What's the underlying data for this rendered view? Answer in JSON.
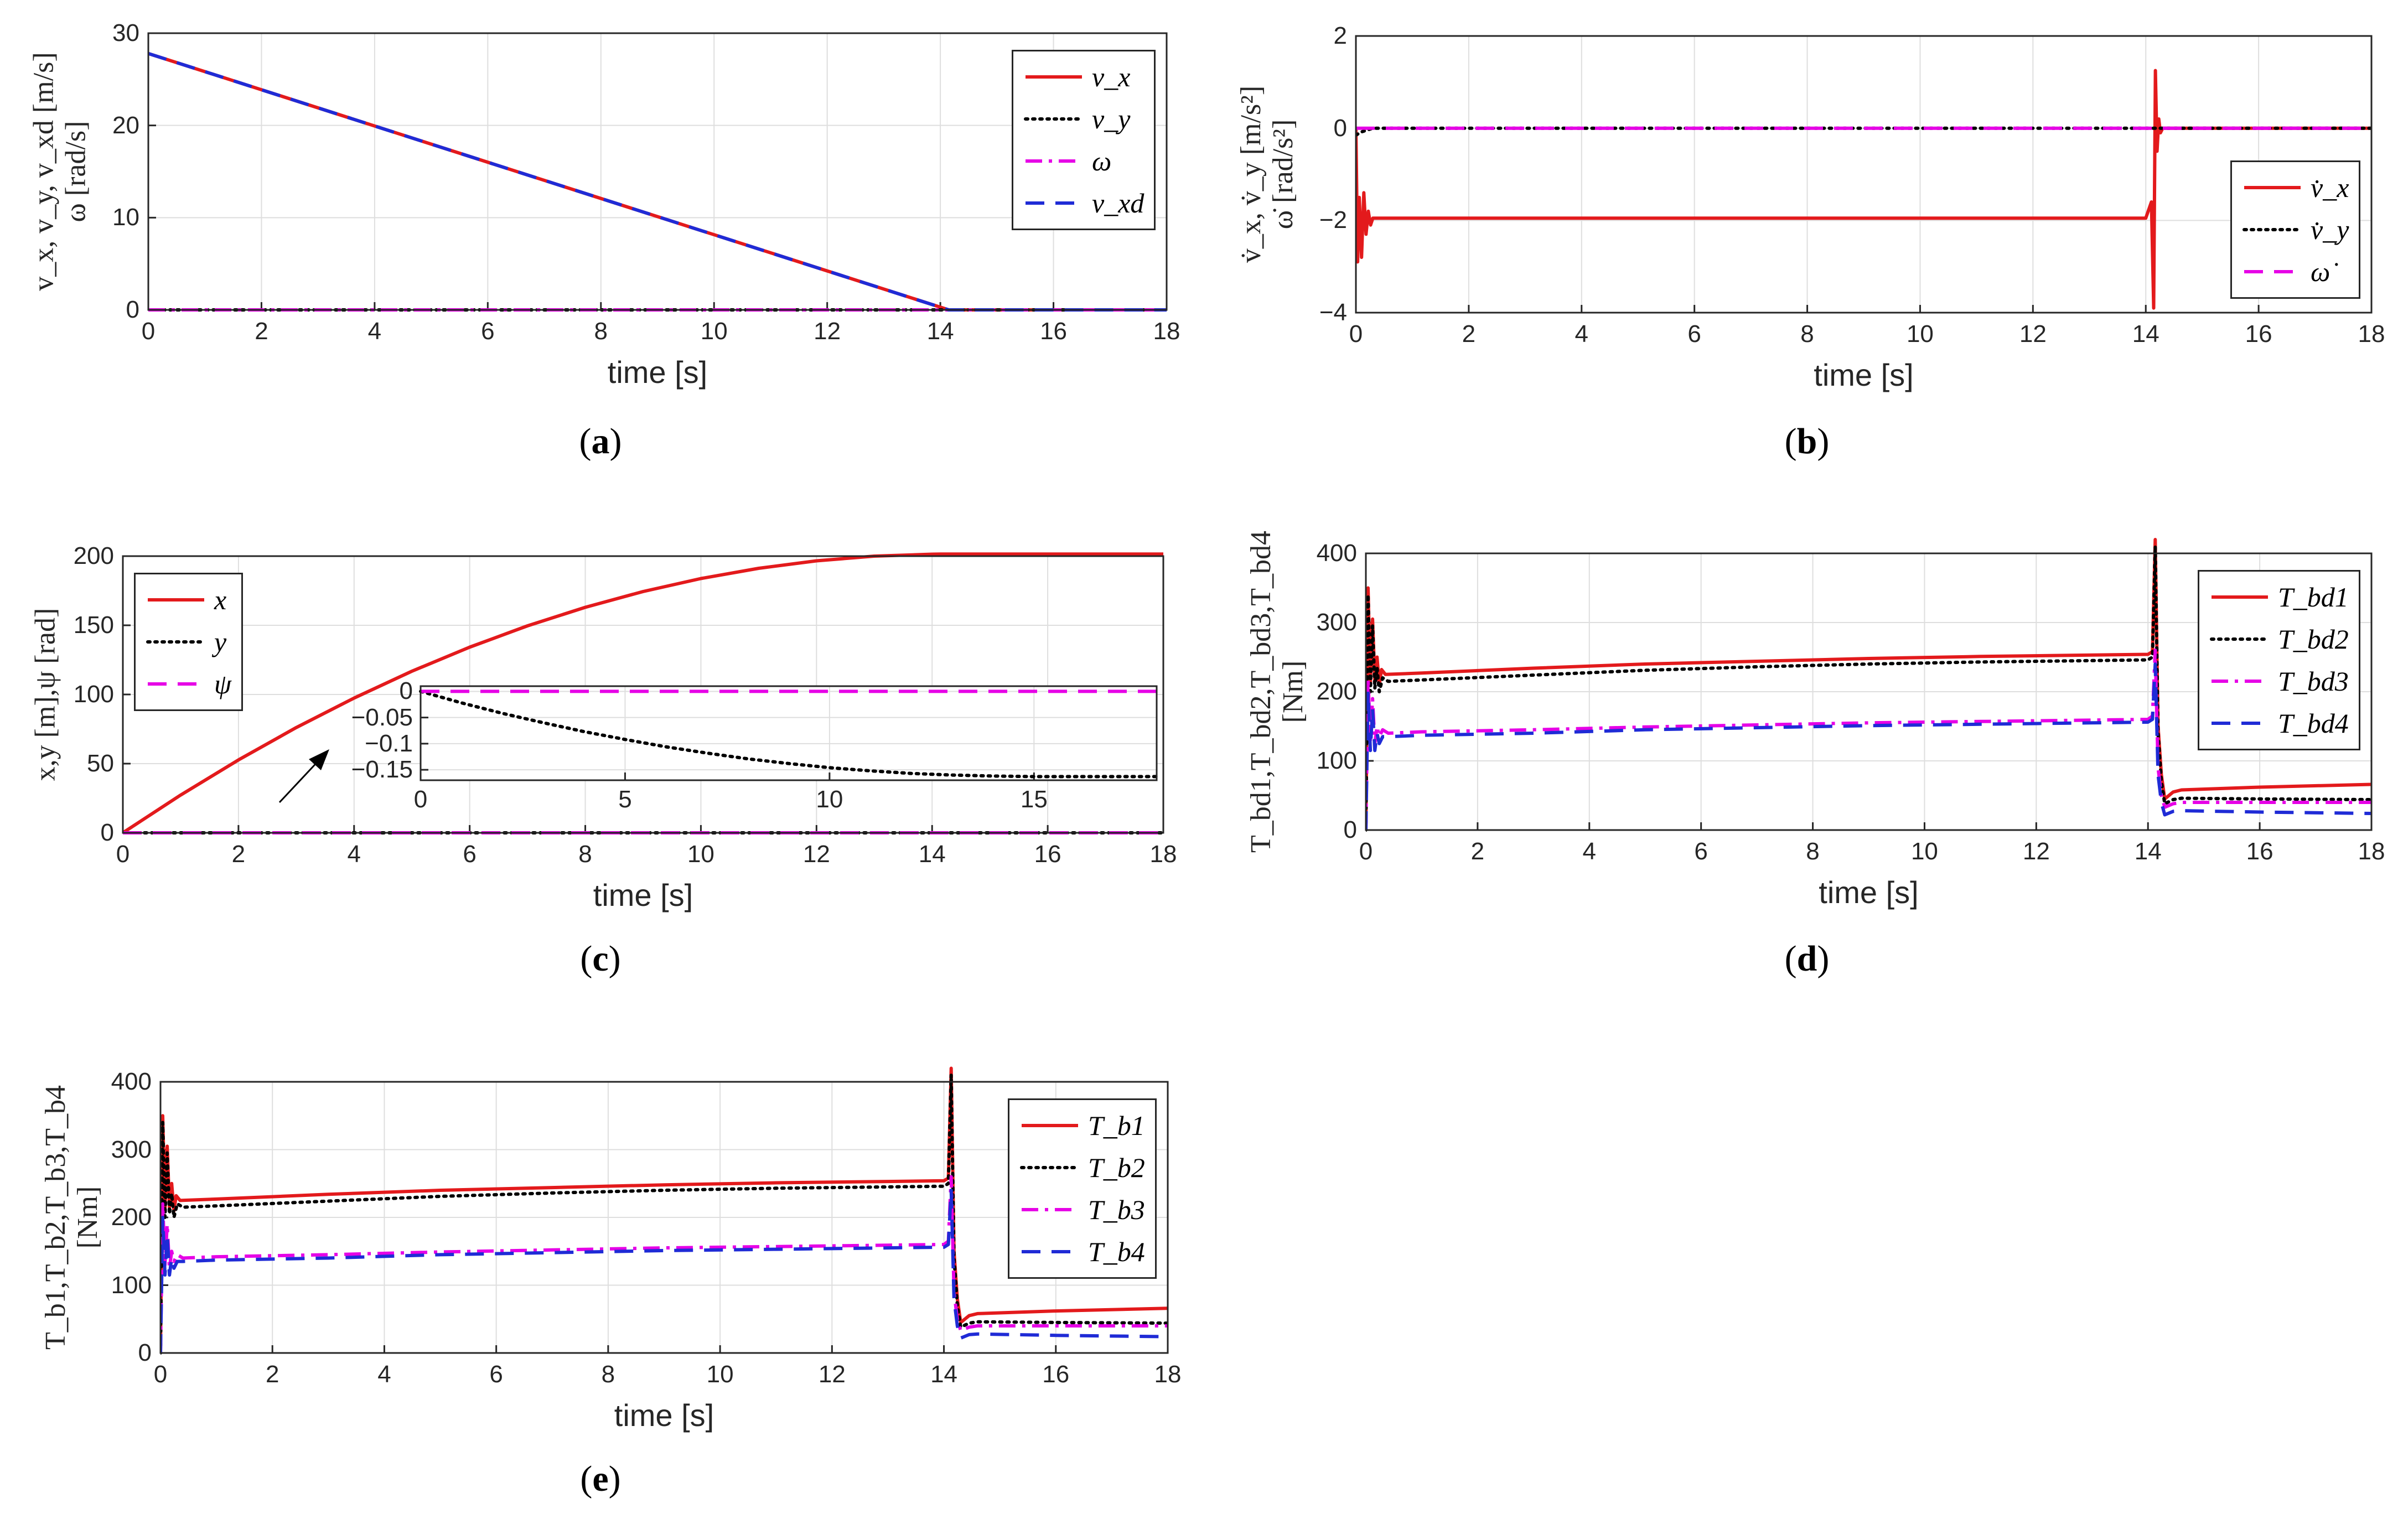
{
  "colors": {
    "red": "#e31a1c",
    "black": "#000000",
    "magenta": "#e600e6",
    "blue": "#1f2bd6",
    "grid": "#dedede",
    "axis": "#262626"
  },
  "chart_data": [
    {
      "id": "a",
      "type": "line",
      "sublabel": "a",
      "xlabel": "time [s]",
      "ylabel_lines": [
        "v_x, v_y, v_xd [m/s]",
        "ω [rad/s]"
      ],
      "xlim": [
        0,
        18
      ],
      "ylim": [
        0,
        30
      ],
      "xticks": [
        0,
        2,
        4,
        6,
        8,
        10,
        12,
        14,
        16,
        18
      ],
      "yticks": [
        0,
        10,
        20,
        30
      ],
      "grid": true,
      "legend_position": "top-right",
      "series": [
        {
          "name": "v_x",
          "color_key": "red",
          "style": "solid",
          "x": [
            0,
            14.15,
            18
          ],
          "y": [
            27.8,
            0,
            0
          ]
        },
        {
          "name": "v_y",
          "color_key": "black",
          "style": "dotted",
          "x": [
            0,
            18
          ],
          "y": [
            0,
            0
          ]
        },
        {
          "name": "ω",
          "color_key": "magenta",
          "style": "dashdot",
          "x": [
            0,
            18
          ],
          "y": [
            0,
            0
          ]
        },
        {
          "name": "v_xd",
          "color_key": "blue",
          "style": "dashed",
          "x": [
            0,
            14.15,
            18
          ],
          "y": [
            27.8,
            0,
            0
          ]
        }
      ]
    },
    {
      "id": "b",
      "type": "line",
      "sublabel": "b",
      "xlabel": "time [s]",
      "ylabel_lines": [
        "v̇_x, v̇_y [m/s²]",
        "ω̇ [rad/s²]"
      ],
      "xlim": [
        0,
        18
      ],
      "ylim": [
        -4,
        2
      ],
      "xticks": [
        0,
        2,
        4,
        6,
        8,
        10,
        12,
        14,
        16,
        18
      ],
      "yticks": [
        -4,
        -2,
        0,
        2
      ],
      "grid": true,
      "legend_position": "right",
      "series": [
        {
          "name": "v̇_x",
          "color_key": "red",
          "style": "solid",
          "x": [
            0,
            0.03,
            0.06,
            0.1,
            0.14,
            0.18,
            0.22,
            0.26,
            0.3,
            0.4,
            14.0,
            14.1,
            14.14,
            14.17,
            14.2,
            14.23,
            14.26,
            14.3,
            18
          ],
          "y": [
            0,
            -2.9,
            -1.5,
            -2.8,
            -1.4,
            -2.3,
            -1.8,
            -2.1,
            -1.95,
            -1.95,
            -1.95,
            -1.6,
            -3.9,
            1.25,
            -0.5,
            0.2,
            -0.1,
            0,
            0
          ]
        },
        {
          "name": "v̇_y",
          "color_key": "black",
          "style": "dotted",
          "x": [
            0,
            0.1,
            0.3,
            18
          ],
          "y": [
            -0.15,
            -0.08,
            0,
            0
          ]
        },
        {
          "name": "ω̇",
          "color_key": "magenta",
          "style": "dashed",
          "x": [
            0,
            18
          ],
          "y": [
            0,
            0
          ]
        }
      ]
    },
    {
      "id": "c",
      "type": "line",
      "sublabel": "c",
      "xlabel": "time [s]",
      "ylabel_lines": [
        "x,y [m],ψ [rad]"
      ],
      "xlim": [
        0,
        18
      ],
      "ylim": [
        0,
        200
      ],
      "xticks": [
        0,
        2,
        4,
        6,
        8,
        10,
        12,
        14,
        16,
        18
      ],
      "yticks": [
        0,
        50,
        100,
        150,
        200
      ],
      "grid": true,
      "legend_position": "top-left",
      "series": [
        {
          "name": "x",
          "color_key": "red",
          "style": "solid",
          "x": [
            0,
            1,
            2,
            3,
            4,
            5,
            6,
            7,
            8,
            9,
            10,
            11,
            12,
            13,
            14,
            14.15,
            18
          ],
          "y": [
            0,
            27.3,
            52.7,
            76.1,
            97.4,
            116.8,
            134.2,
            149.6,
            163.0,
            174.4,
            183.8,
            191.2,
            196.6,
            200.0,
            201.4,
            201.5,
            201.5
          ]
        },
        {
          "name": "y",
          "color_key": "black",
          "style": "dotted",
          "x": [
            0,
            18
          ],
          "y": [
            0,
            0
          ]
        },
        {
          "name": "ψ",
          "color_key": "magenta",
          "style": "dashed",
          "x": [
            0,
            18
          ],
          "y": [
            0,
            0
          ]
        }
      ],
      "inset": {
        "xlim": [
          0,
          18
        ],
        "ylim": [
          -0.17,
          0.01
        ],
        "xticks": [
          0,
          5,
          10,
          15
        ],
        "yticks": [
          0,
          -0.05,
          -0.1,
          -0.15
        ],
        "series": [
          {
            "name": "y",
            "color_key": "black",
            "style": "dotted",
            "x": [
              0,
              1,
              2,
              3,
              4,
              5,
              6,
              7,
              8,
              9,
              10,
              11,
              12,
              13,
              14,
              15,
              16,
              17,
              18
            ],
            "y": [
              0,
              -0.022,
              -0.042,
              -0.06,
              -0.077,
              -0.092,
              -0.106,
              -0.118,
              -0.129,
              -0.138,
              -0.146,
              -0.152,
              -0.157,
              -0.16,
              -0.162,
              -0.163,
              -0.163,
              -0.163,
              -0.163
            ]
          },
          {
            "name": "ψ",
            "color_key": "magenta",
            "style": "dashed",
            "x": [
              0,
              18
            ],
            "y": [
              0,
              0
            ]
          }
        ]
      }
    },
    {
      "id": "d",
      "type": "line",
      "sublabel": "d",
      "xlabel": "time [s]",
      "ylabel_lines": [
        "T_bd1,T_bd2,T_bd3,T_bd4",
        "[Nm]"
      ],
      "xlim": [
        0,
        18
      ],
      "ylim": [
        0,
        400
      ],
      "xticks": [
        0,
        2,
        4,
        6,
        8,
        10,
        12,
        14,
        16,
        18
      ],
      "yticks": [
        0,
        100,
        200,
        300,
        400
      ],
      "grid": true,
      "legend_position": "top-right",
      "series": [
        {
          "name": "T_bd1",
          "color_key": "red",
          "style": "solid",
          "x": [
            0,
            0.04,
            0.08,
            0.12,
            0.16,
            0.2,
            0.24,
            0.28,
            0.35,
            1,
            3,
            5,
            7,
            9,
            11,
            13,
            14,
            14.08,
            14.13,
            14.18,
            14.24,
            14.3,
            14.45,
            14.6,
            16,
            18
          ],
          "y": [
            0,
            350,
            210,
            305,
            215,
            250,
            210,
            232,
            225,
            227,
            234,
            240,
            244,
            248,
            251,
            253,
            254,
            258,
            420,
            150,
            80,
            45,
            55,
            58,
            62,
            66
          ]
        },
        {
          "name": "T_bd2",
          "color_key": "black",
          "style": "dotted",
          "x": [
            0,
            0.04,
            0.08,
            0.12,
            0.16,
            0.2,
            0.24,
            0.3,
            0.4,
            1,
            3,
            5,
            7,
            9,
            11,
            13,
            14,
            14.08,
            14.13,
            14.18,
            14.24,
            14.3,
            14.45,
            14.6,
            16,
            18
          ],
          "y": [
            0,
            340,
            200,
            295,
            205,
            235,
            200,
            220,
            215,
            217,
            224,
            231,
            236,
            240,
            243,
            245,
            246,
            250,
            410,
            140,
            70,
            38,
            44,
            46,
            45,
            44
          ]
        },
        {
          "name": "T_bd3",
          "color_key": "magenta",
          "style": "dashdot",
          "x": [
            0,
            0.04,
            0.08,
            0.12,
            0.16,
            0.2,
            0.24,
            0.3,
            0.4,
            1,
            3,
            5,
            7,
            9,
            11,
            13,
            14,
            14.08,
            14.13,
            14.18,
            14.24,
            14.3,
            14.45,
            14.6,
            16,
            18
          ],
          "y": [
            0,
            220,
            130,
            190,
            125,
            150,
            135,
            145,
            140,
            142,
            145,
            149,
            152,
            155,
            157,
            159,
            160,
            165,
            260,
            90,
            50,
            33,
            38,
            40,
            40,
            40
          ]
        },
        {
          "name": "T_bd4",
          "color_key": "blue",
          "style": "dashed",
          "x": [
            0,
            0.04,
            0.08,
            0.12,
            0.16,
            0.2,
            0.24,
            0.3,
            0.4,
            1,
            3,
            5,
            7,
            9,
            11,
            13,
            14,
            14.08,
            14.13,
            14.18,
            14.24,
            14.3,
            14.45,
            14.6,
            16,
            18
          ],
          "y": [
            0,
            200,
            115,
            175,
            115,
            140,
            125,
            135,
            135,
            137,
            140,
            145,
            148,
            151,
            153,
            155,
            156,
            160,
            240,
            80,
            40,
            22,
            27,
            28,
            26,
            24
          ]
        }
      ]
    },
    {
      "id": "e",
      "type": "line",
      "sublabel": "e",
      "xlabel": "time [s]",
      "ylabel_lines": [
        "T_b1,T_b2,T_b3,T_b4",
        "[Nm]"
      ],
      "xlim": [
        0,
        18
      ],
      "ylim": [
        0,
        400
      ],
      "xticks": [
        0,
        2,
        4,
        6,
        8,
        10,
        12,
        14,
        16,
        18
      ],
      "yticks": [
        0,
        100,
        200,
        300,
        400
      ],
      "grid": true,
      "legend_position": "top-right",
      "series": [
        {
          "name": "T_b1",
          "color_key": "red",
          "style": "solid",
          "x": [
            0,
            0.04,
            0.08,
            0.12,
            0.16,
            0.2,
            0.24,
            0.28,
            0.35,
            1,
            3,
            5,
            7,
            9,
            11,
            13,
            14,
            14.08,
            14.13,
            14.18,
            14.24,
            14.3,
            14.45,
            14.6,
            16,
            18
          ],
          "y": [
            0,
            350,
            210,
            305,
            215,
            250,
            210,
            232,
            225,
            227,
            234,
            240,
            244,
            248,
            251,
            253,
            254,
            258,
            420,
            150,
            80,
            45,
            55,
            58,
            62,
            66
          ]
        },
        {
          "name": "T_b2",
          "color_key": "black",
          "style": "dotted",
          "x": [
            0,
            0.04,
            0.08,
            0.12,
            0.16,
            0.2,
            0.24,
            0.3,
            0.4,
            1,
            3,
            5,
            7,
            9,
            11,
            13,
            14,
            14.08,
            14.13,
            14.18,
            14.24,
            14.3,
            14.45,
            14.6,
            16,
            18
          ],
          "y": [
            0,
            340,
            200,
            295,
            205,
            235,
            200,
            220,
            215,
            217,
            224,
            231,
            236,
            240,
            243,
            245,
            246,
            250,
            410,
            140,
            70,
            38,
            44,
            46,
            45,
            44
          ]
        },
        {
          "name": "T_b3",
          "color_key": "magenta",
          "style": "dashdot",
          "x": [
            0,
            0.04,
            0.08,
            0.12,
            0.16,
            0.2,
            0.24,
            0.3,
            0.4,
            1,
            3,
            5,
            7,
            9,
            11,
            13,
            14,
            14.08,
            14.13,
            14.18,
            14.24,
            14.3,
            14.45,
            14.6,
            16,
            18
          ],
          "y": [
            0,
            220,
            130,
            190,
            125,
            150,
            135,
            145,
            140,
            142,
            145,
            149,
            152,
            155,
            157,
            159,
            160,
            165,
            260,
            90,
            50,
            33,
            38,
            40,
            40,
            40
          ]
        },
        {
          "name": "T_b4",
          "color_key": "blue",
          "style": "dashed",
          "x": [
            0,
            0.04,
            0.08,
            0.12,
            0.16,
            0.2,
            0.24,
            0.3,
            0.4,
            1,
            3,
            5,
            7,
            9,
            11,
            13,
            14,
            14.08,
            14.13,
            14.18,
            14.24,
            14.3,
            14.45,
            14.6,
            16,
            18
          ],
          "y": [
            0,
            200,
            115,
            175,
            115,
            140,
            125,
            135,
            135,
            137,
            140,
            145,
            148,
            151,
            153,
            155,
            156,
            160,
            240,
            80,
            40,
            22,
            27,
            28,
            26,
            24
          ]
        }
      ]
    }
  ]
}
